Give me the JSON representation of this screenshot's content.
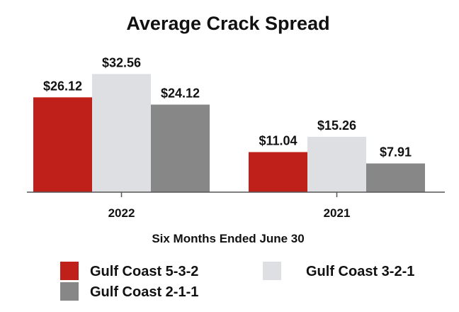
{
  "chart_data": {
    "type": "bar",
    "title": "Average Crack Spread",
    "xlabel": "Six Months Ended June 30",
    "ylabel": "",
    "ylim": [
      0,
      42
    ],
    "grid": false,
    "legend_position": "bottom",
    "categories": [
      "2022",
      "2021"
    ],
    "series": [
      {
        "name": "Gulf Coast 5-3-2",
        "color": "#c0201a",
        "values": [
          26.12,
          11.04
        ],
        "labels": [
          "$26.12",
          "$11.04"
        ]
      },
      {
        "name": "Gulf Coast 3-2-1",
        "color": "#dedfe3",
        "values": [
          32.56,
          15.26
        ],
        "labels": [
          "$32.56",
          "$15.26"
        ]
      },
      {
        "name": "Gulf Coast 2-1-1",
        "color": "#878787",
        "values": [
          24.12,
          7.91
        ],
        "labels": [
          "$24.12",
          "$7.91"
        ]
      }
    ]
  }
}
